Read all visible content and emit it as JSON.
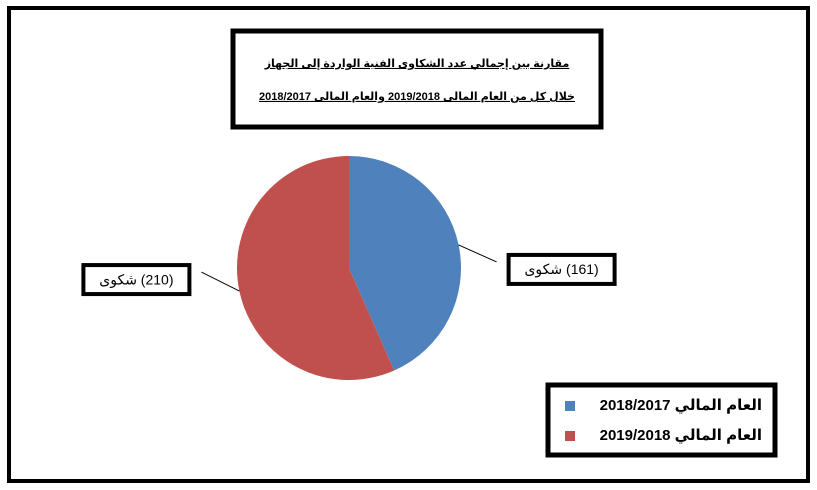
{
  "chart_data": {
    "type": "pie",
    "title": [
      "مقارنة بين إجمالي عدد الشكاوى الفنية الواردة إلى الجهاز",
      "خلال كل من العام المالى 2019/2018 والعام المالى 2018/2017"
    ],
    "categories": [
      "العام المالي 2018/2017",
      "العام المالي 2019/2018"
    ],
    "values": [
      161,
      210
    ],
    "value_labels": [
      "(161) شكوى",
      "(210) شكوى"
    ],
    "colors": [
      "#4f81bd",
      "#c0504d"
    ],
    "legend": "bottom-right"
  }
}
